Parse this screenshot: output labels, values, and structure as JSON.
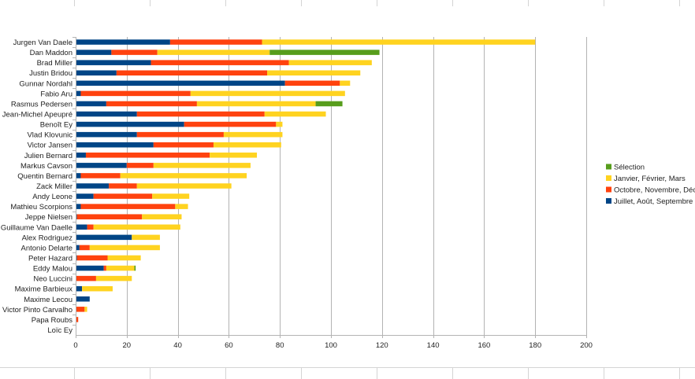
{
  "chart_data": {
    "type": "bar",
    "orientation": "horizontal",
    "stacked": true,
    "title": "",
    "xlabel": "",
    "ylabel": "",
    "xlim": [
      0,
      200
    ],
    "xticks": [
      0,
      20,
      40,
      60,
      80,
      100,
      120,
      140,
      160,
      180,
      200
    ],
    "grid": true,
    "legend_position": "right",
    "categories": [
      "Jurgen Van Daele",
      "Dan Maddon",
      "Brad Miller",
      "Justin Bridou",
      "Gunnar Nordahl",
      "Fabio Aru",
      "Rasmus Pedersen",
      "Jean-Michel Apeupré",
      "Benoît Ey",
      "Vlad Klovunic",
      "Victor Jansen",
      "Julien Bernard",
      "Markus Cavson",
      "Quentin Bernard",
      "Zack Miller",
      "Andy Leone",
      "Mathieu Scorpions",
      "Jeppe Nielsen",
      "Guillaume Van Daelle",
      "Alex Rodriguez",
      "Antonio Delarte",
      "Peter Hazard",
      "Eddy Malou",
      "Neo Luccini",
      "Maxime Barbieux",
      "Maxime Lecou",
      "Victor Pinto Carvalho",
      "Papa Roubs",
      "Loïc Ey"
    ],
    "series": [
      {
        "name": "Juillet, Août, Septembre",
        "color": "#004586",
        "values": [
          37,
          14,
          29.5,
          16,
          82,
          2,
          12,
          24,
          42.5,
          24,
          30.5,
          4,
          20,
          2,
          13,
          7,
          2,
          0.5,
          4.5,
          22,
          1.5,
          0.5,
          11,
          0,
          2.5,
          5.5,
          0,
          0,
          0
        ]
      },
      {
        "name": "Octobre, Novembre, Décer",
        "color": "#ff420e",
        "values": [
          36,
          18,
          54,
          59,
          21.5,
          43,
          35.5,
          50,
          36,
          34,
          23.5,
          48.5,
          10.5,
          15.5,
          11,
          23,
          37,
          25.5,
          2.5,
          0,
          4,
          12,
          1,
          8,
          0,
          0,
          3.5,
          1,
          0
        ]
      },
      {
        "name": "Janvier, Février, Mars",
        "color": "#ffd320",
        "values": [
          107,
          44,
          32.5,
          36.5,
          4,
          60.5,
          46.5,
          24,
          2.5,
          23,
          26.5,
          18.5,
          38,
          49.5,
          37,
          14.5,
          5,
          15.5,
          34,
          11,
          27.5,
          13,
          11,
          14,
          12,
          0,
          1,
          0,
          0
        ]
      },
      {
        "name": "Sélection",
        "color": "#579d1c",
        "values": [
          0,
          43,
          0,
          0,
          0,
          0,
          10.5,
          0,
          0,
          0,
          0,
          0,
          0,
          0,
          0,
          0,
          0,
          0,
          0,
          0,
          0,
          0,
          0.5,
          0,
          0,
          0,
          0,
          0,
          0
        ]
      }
    ]
  }
}
